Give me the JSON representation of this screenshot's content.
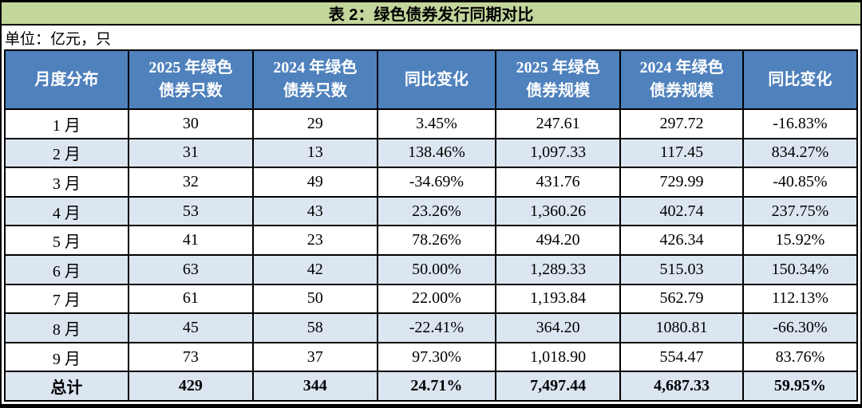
{
  "colors": {
    "title_bg": "#c3d69b",
    "header_bg": "#4f81bd",
    "header_text": "#ffffff",
    "stripe_bg": "#dce6f1",
    "border": "#000000"
  },
  "chart_data": {
    "type": "table",
    "title": "表 2：绿色债券发行同期对比",
    "unit_note": "单位：亿元，只",
    "columns": [
      "月度分布",
      "2025 年绿色债券只数",
      "2024 年绿色债券只数",
      "同比变化",
      "2025 年绿色债券规模",
      "2024 年绿色债券规模",
      "同比变化"
    ],
    "header_lines": [
      [
        "月度分布"
      ],
      [
        "2025 年绿色",
        "债券只数"
      ],
      [
        "2024 年绿色",
        "债券只数"
      ],
      [
        "同比变化"
      ],
      [
        "2025 年绿色",
        "债券规模"
      ],
      [
        "2024 年绿色",
        "债券规模"
      ],
      [
        "同比变化"
      ]
    ],
    "rows": [
      [
        "1 月",
        "30",
        "29",
        "3.45%",
        "247.61",
        "297.72",
        "-16.83%"
      ],
      [
        "2 月",
        "31",
        "13",
        "138.46%",
        "1,097.33",
        "117.45",
        "834.27%"
      ],
      [
        "3 月",
        "32",
        "49",
        "-34.69%",
        "431.76",
        "729.99",
        "-40.85%"
      ],
      [
        "4 月",
        "53",
        "43",
        "23.26%",
        "1,360.26",
        "402.74",
        "237.75%"
      ],
      [
        "5 月",
        "41",
        "23",
        "78.26%",
        "494.20",
        "426.34",
        "15.92%"
      ],
      [
        "6 月",
        "63",
        "42",
        "50.00%",
        "1,289.33",
        "515.03",
        "150.34%"
      ],
      [
        "7 月",
        "61",
        "50",
        "22.00%",
        "1,193.84",
        "562.79",
        "112.13%"
      ],
      [
        "8 月",
        "45",
        "58",
        "-22.41%",
        "364.20",
        "1080.81",
        "-66.30%"
      ],
      [
        "9 月",
        "73",
        "37",
        "97.30%",
        "1,018.90",
        "554.47",
        "83.76%"
      ]
    ],
    "total_row": [
      "总计",
      "429",
      "344",
      "24.71%",
      "7,497.44",
      "4,687.33",
      "59.95%"
    ]
  }
}
